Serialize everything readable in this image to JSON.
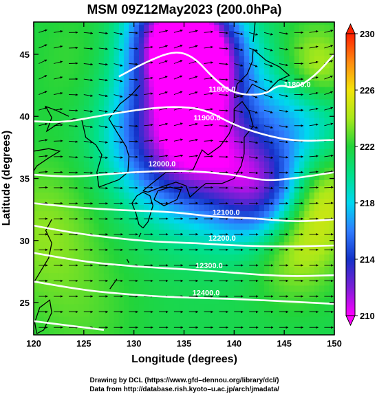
{
  "chart_data": {
    "type": "heatmap",
    "title": "MSM 09Z12May2023 (200.0hPa)",
    "xlabel": "Longitude (degrees)",
    "ylabel": "Latitude  (degrees)",
    "xlim": [
      120,
      150
    ],
    "ylim": [
      22.4,
      47.6
    ],
    "x_ticks": [
      120,
      125,
      130,
      135,
      140,
      145,
      150
    ],
    "y_ticks": [
      25,
      30,
      35,
      40,
      45
    ],
    "colorbar": {
      "range": [
        210,
        230
      ],
      "ticks": [
        210,
        214,
        218,
        222,
        226,
        230
      ]
    },
    "color_stops": [
      {
        "value": 210,
        "color": "#ff00ff"
      },
      {
        "value": 212,
        "color": "#7a1fd6"
      },
      {
        "value": 214,
        "color": "#1432c8"
      },
      {
        "value": 216,
        "color": "#2f7cff"
      },
      {
        "value": 218,
        "color": "#00d7f0"
      },
      {
        "value": 220,
        "color": "#00e08a"
      },
      {
        "value": 222,
        "color": "#22d43a"
      },
      {
        "value": 224,
        "color": "#a8e81a"
      },
      {
        "value": 226,
        "color": "#f2e40a"
      },
      {
        "value": 228,
        "color": "#ff8a10"
      },
      {
        "value": 230,
        "color": "#ff2000"
      }
    ],
    "temperature_features": [
      {
        "lon": 134,
        "lat": 46.5,
        "value": 210.5,
        "spread": 3.0
      },
      {
        "lon": 137,
        "lat": 44.5,
        "value": 211.5,
        "spread": 3.0
      },
      {
        "lon": 133,
        "lat": 39.0,
        "value": 213.5,
        "spread": 4.0
      },
      {
        "lon": 138,
        "lat": 37.0,
        "value": 214.0,
        "spread": 4.0
      },
      {
        "lon": 143,
        "lat": 34.0,
        "value": 214.5,
        "spread": 3.0
      },
      {
        "lon": 147,
        "lat": 41.0,
        "value": 217.0,
        "spread": 3.0
      },
      {
        "lon": 148,
        "lat": 43.5,
        "value": 226.5,
        "spread": 2.5
      },
      {
        "lon": 146,
        "lat": 30.0,
        "value": 225.0,
        "spread": 3.0
      },
      {
        "lon": 149,
        "lat": 33.5,
        "value": 224.5,
        "spread": 2.5
      },
      {
        "lon": 125,
        "lat": 44.0,
        "value": 222.5,
        "spread": 4.0
      },
      {
        "lon": 121,
        "lat": 31.0,
        "value": 223.5,
        "spread": 4.0
      },
      {
        "lon": 125,
        "lat": 24.0,
        "value": 222.5,
        "spread": 4.0
      }
    ],
    "height_contours": [
      {
        "label": "11800.0",
        "points": [
          [
            128.5,
            43.2
          ],
          [
            131,
            44.3
          ],
          [
            134,
            45.3
          ],
          [
            136,
            44.8
          ],
          [
            138,
            43.0
          ],
          [
            140,
            41.8
          ],
          [
            143,
            41.7
          ],
          [
            144.5,
            42.6
          ],
          [
            146,
            42.2
          ],
          [
            148,
            43.2
          ],
          [
            150,
            45.0
          ]
        ],
        "labels": [
          [
            138.8,
            42.2
          ],
          [
            146.3,
            42.6
          ]
        ]
      },
      {
        "label": "11900.0",
        "points": [
          [
            120,
            39.6
          ],
          [
            123,
            39.5
          ],
          [
            127,
            40.1
          ],
          [
            131,
            40.6
          ],
          [
            134,
            40.8
          ],
          [
            137,
            40.6
          ],
          [
            140,
            39.3
          ],
          [
            143,
            38.5
          ],
          [
            146,
            38.0
          ],
          [
            150,
            38.1
          ]
        ],
        "labels": [
          [
            137.3,
            39.9
          ]
        ]
      },
      {
        "label": "12000.0",
        "points": [
          [
            120,
            35.3
          ],
          [
            124,
            35.1
          ],
          [
            128,
            35.4
          ],
          [
            132,
            35.6
          ],
          [
            136,
            35.6
          ],
          [
            140,
            35.3
          ],
          [
            143,
            34.8
          ],
          [
            146,
            35.0
          ],
          [
            150,
            35.5
          ]
        ],
        "labels": [
          [
            132.8,
            36.2
          ]
        ]
      },
      {
        "label": "12100.0",
        "points": [
          [
            120,
            33.0
          ],
          [
            125,
            32.6
          ],
          [
            130,
            32.4
          ],
          [
            134,
            32.3
          ],
          [
            138,
            31.9
          ],
          [
            142,
            31.8
          ],
          [
            146,
            31.5
          ],
          [
            150,
            31.7
          ]
        ],
        "labels": [
          [
            139.2,
            32.3
          ]
        ]
      },
      {
        "label": "12200.0",
        "points": [
          [
            120,
            31.2
          ],
          [
            124,
            30.6
          ],
          [
            128,
            30.2
          ],
          [
            132,
            29.9
          ],
          [
            136,
            29.8
          ],
          [
            140,
            29.6
          ],
          [
            145,
            29.5
          ],
          [
            150,
            29.6
          ]
        ],
        "labels": [
          [
            138.8,
            30.2
          ]
        ]
      },
      {
        "label": "12300.0",
        "points": [
          [
            120,
            29.0
          ],
          [
            125,
            28.3
          ],
          [
            130,
            27.9
          ],
          [
            135,
            27.7
          ],
          [
            140,
            27.4
          ],
          [
            145,
            27.1
          ],
          [
            150,
            27.2
          ]
        ],
        "labels": [
          [
            137.5,
            28.0
          ]
        ]
      },
      {
        "label": "12400.0",
        "points": [
          [
            120,
            26.7
          ],
          [
            125,
            26.0
          ],
          [
            130,
            25.6
          ],
          [
            135,
            25.4
          ],
          [
            140,
            25.3
          ],
          [
            145,
            25.1
          ],
          [
            150,
            24.9
          ]
        ],
        "labels": [
          [
            137.2,
            25.8
          ]
        ]
      },
      {
        "label": "",
        "points": [
          [
            120,
            23.5
          ],
          [
            123,
            23.2
          ],
          [
            127,
            22.8
          ]
        ],
        "labels": []
      }
    ]
  },
  "credits": {
    "line1": "Drawing by DCL (https://www.gfd–dennou.org/library/dcl/)",
    "line2": "Data from http://database.rish.kyoto–u.ac.jp/arch/jmadata/"
  }
}
